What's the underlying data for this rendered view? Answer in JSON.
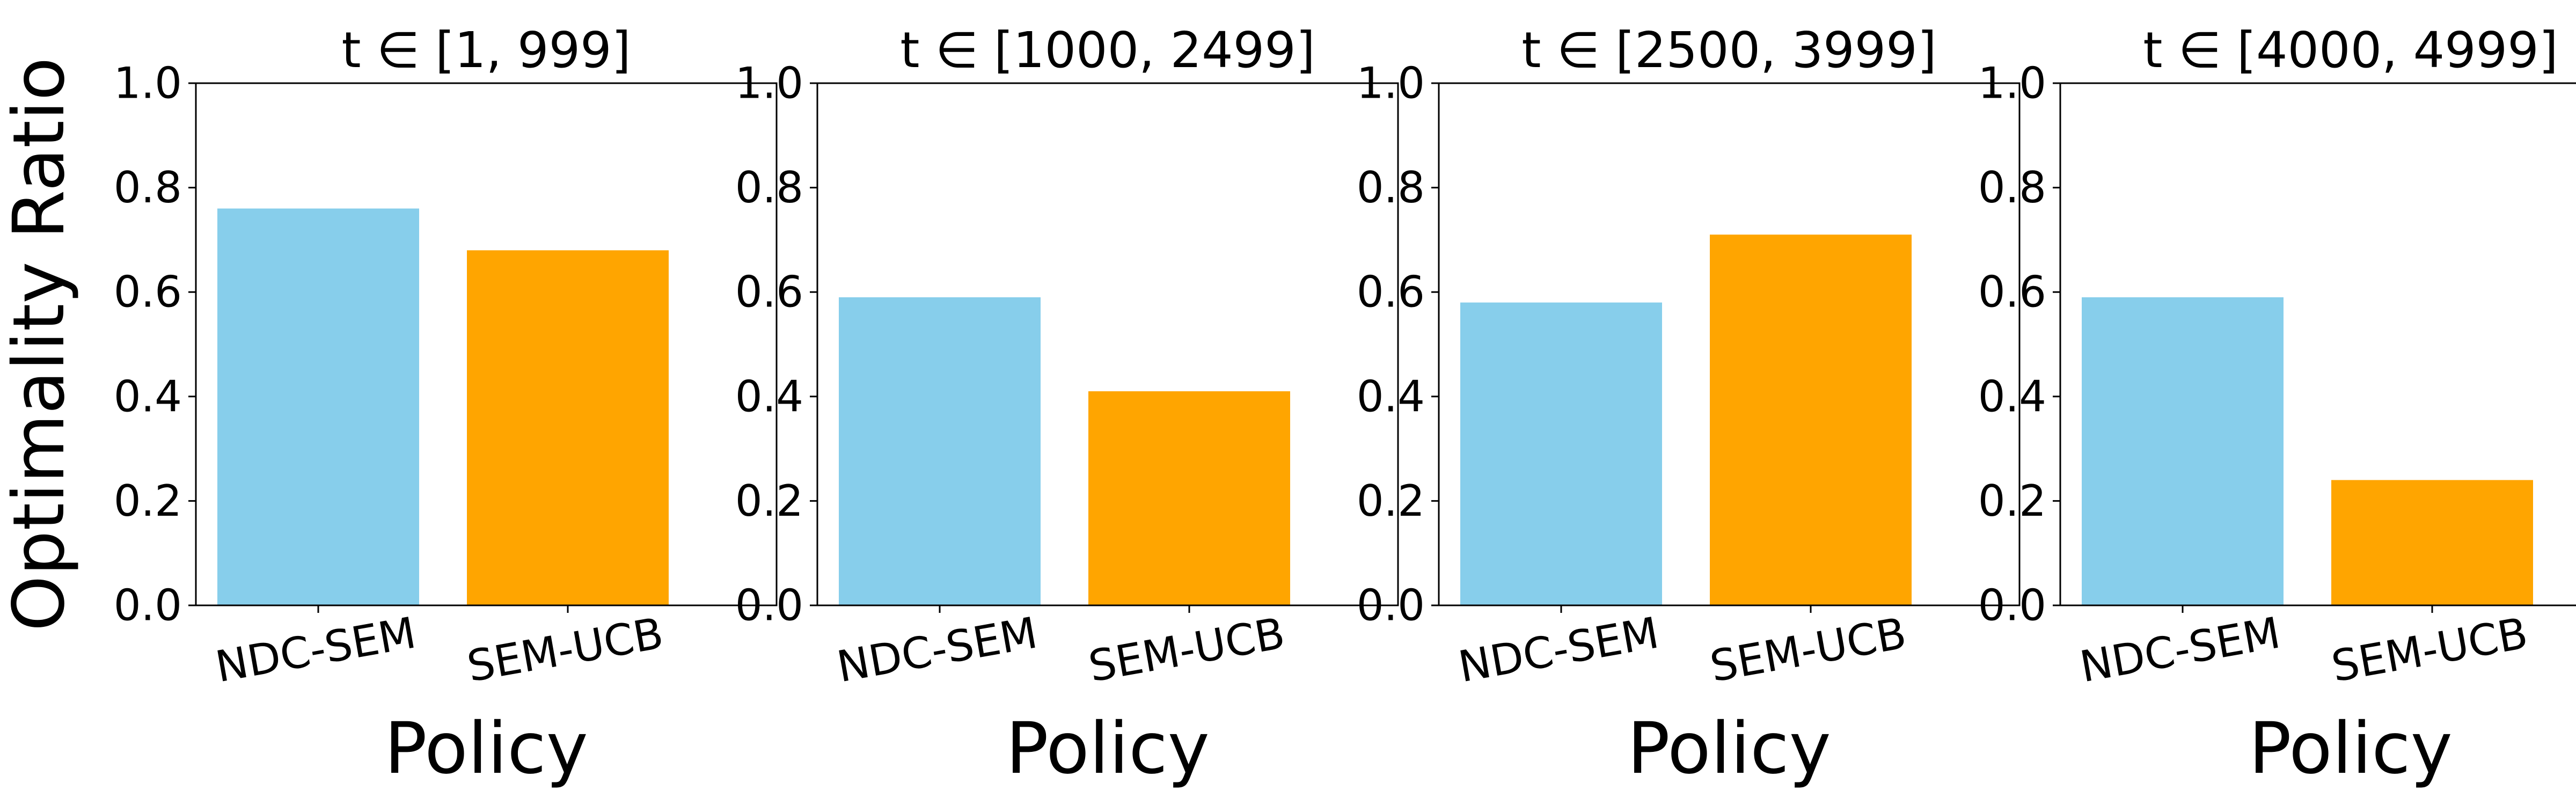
{
  "chart_data": [
    {
      "type": "bar",
      "title": "t ∈ [1, 999]",
      "xlabel": "Policy",
      "ylabel": "Optimality Ratio",
      "categories": [
        "NDC-SEM",
        "SEM-UCB"
      ],
      "values": [
        0.76,
        0.68
      ],
      "colors": [
        "#87CEEB",
        "#FFA500"
      ],
      "ylim": [
        0,
        1.0
      ],
      "yticks": [
        "0.0",
        "0.2",
        "0.4",
        "0.6",
        "0.8",
        "1.0"
      ],
      "grid": false
    },
    {
      "type": "bar",
      "title": "t ∈ [1000, 2499]",
      "xlabel": "Policy",
      "ylabel": "",
      "categories": [
        "NDC-SEM",
        "SEM-UCB"
      ],
      "values": [
        0.59,
        0.41
      ],
      "colors": [
        "#87CEEB",
        "#FFA500"
      ],
      "ylim": [
        0,
        1.0
      ],
      "yticks": [
        "0.0",
        "0.2",
        "0.4",
        "0.6",
        "0.8",
        "1.0"
      ],
      "grid": false
    },
    {
      "type": "bar",
      "title": "t ∈ [2500, 3999]",
      "xlabel": "Policy",
      "ylabel": "",
      "categories": [
        "NDC-SEM",
        "SEM-UCB"
      ],
      "values": [
        0.58,
        0.71
      ],
      "colors": [
        "#87CEEB",
        "#FFA500"
      ],
      "ylim": [
        0,
        1.0
      ],
      "yticks": [
        "0.0",
        "0.2",
        "0.4",
        "0.6",
        "0.8",
        "1.0"
      ],
      "grid": false
    },
    {
      "type": "bar",
      "title": "t ∈ [4000, 4999]",
      "xlabel": "Policy",
      "ylabel": "",
      "categories": [
        "NDC-SEM",
        "SEM-UCB"
      ],
      "values": [
        0.59,
        0.24
      ],
      "colors": [
        "#87CEEB",
        "#FFA500"
      ],
      "ylim": [
        0,
        1.0
      ],
      "yticks": [
        "0.0",
        "0.2",
        "0.4",
        "0.6",
        "0.8",
        "1.0"
      ],
      "grid": false
    }
  ]
}
